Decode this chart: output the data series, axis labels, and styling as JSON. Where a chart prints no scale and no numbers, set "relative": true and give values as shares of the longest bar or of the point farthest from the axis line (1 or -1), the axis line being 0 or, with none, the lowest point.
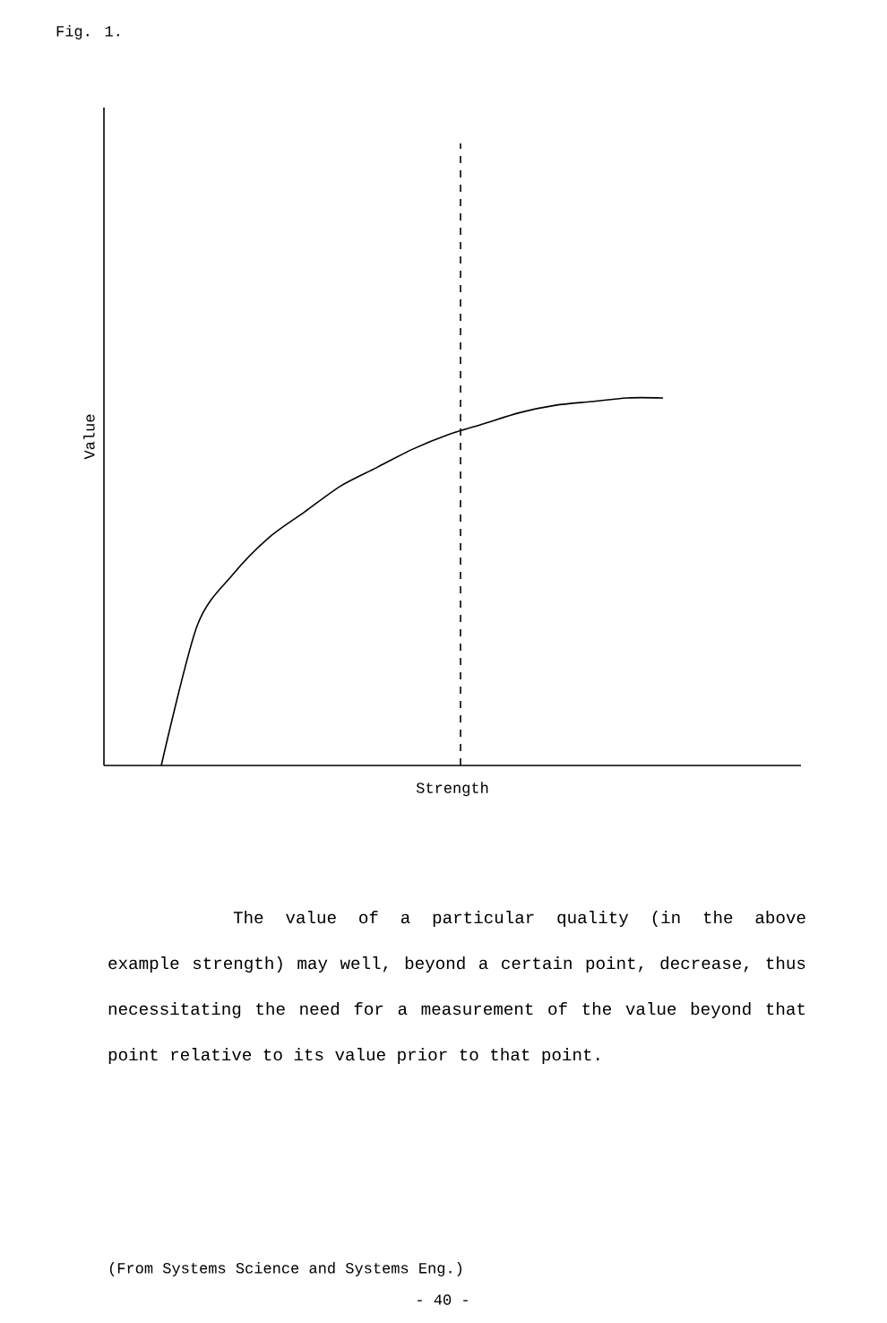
{
  "chart_data": {
    "type": "line",
    "title": "Fig. 1.",
    "xlabel": "Strength",
    "ylabel": "Value",
    "relative": true,
    "categories": [
      null,
      null,
      null,
      null,
      null,
      null,
      null,
      null,
      null,
      null,
      null,
      null,
      null,
      null,
      null
    ],
    "series": [
      {
        "color": "#000000",
        "values": [
          0,
          0.38,
          0.52,
          0.62,
          0.69,
          0.76,
          0.81,
          0.86,
          0.9,
          0.93,
          0.96,
          0.98,
          0.99,
          1,
          1
        ]
      }
    ],
    "annotations": [
      "The value of a particular quality (in the above example strength) may well, beyond a certain point, decrease, thus necessitating the need for a measurement of the value beyond that point relative to its value prior to that point.",
      "(From Systems Science and Systems Eng.)",
      "- 40 -"
    ]
  }
}
